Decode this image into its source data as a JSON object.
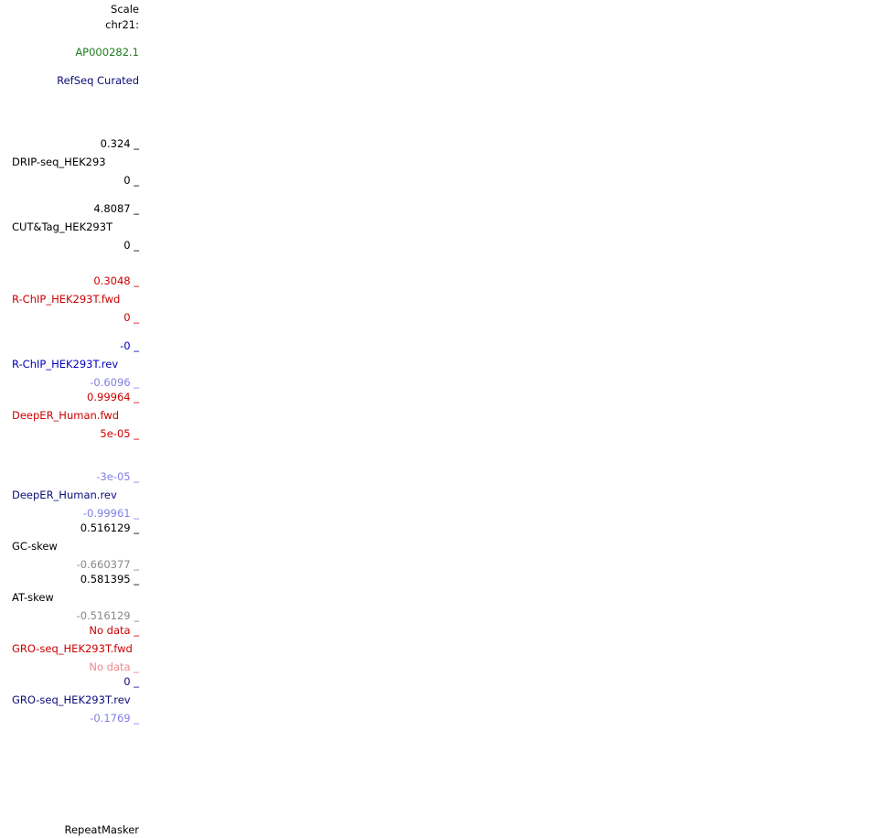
{
  "header": {
    "scale": "Scale",
    "chrom": "chr21:"
  },
  "gene_track": {
    "gene": "AP000282.1",
    "name": "RefSeq Curated"
  },
  "signal_tracks": [
    {
      "name": "DRIP-seq_HEK293",
      "max": "0.324 _",
      "min": "0 _"
    },
    {
      "name": "CUT&Tag_HEK293T",
      "max": "4.8087 _",
      "min": "0 _"
    },
    {
      "name": "R-ChIP_HEK293T.fwd",
      "max": "0.3048 _",
      "min": "0 _"
    },
    {
      "name": "R-ChIP_HEK293T.rev",
      "max": "-0 _",
      "min": "-0.6096 _"
    },
    {
      "name": "DeepER_Human.fwd",
      "max": "0.99964 _",
      "min": "5e-05 _"
    },
    {
      "name": "DeepER_Human.rev",
      "max": "-3e-05 _",
      "min": "-0.99961 _"
    },
    {
      "name": "GC-skew",
      "max": "0.516129 _",
      "min": "-0.660377 _"
    },
    {
      "name": "AT-skew",
      "max": "0.581395 _",
      "min": "-0.516129 _"
    },
    {
      "name": "GRO-seq_HEK293T.fwd",
      "max": "No data _",
      "min": "No data _"
    },
    {
      "name": "GRO-seq_HEK293T.rev",
      "max": "0 _",
      "min": "-0.1769 _"
    }
  ],
  "repeat_track": {
    "name": "RepeatMasker"
  }
}
